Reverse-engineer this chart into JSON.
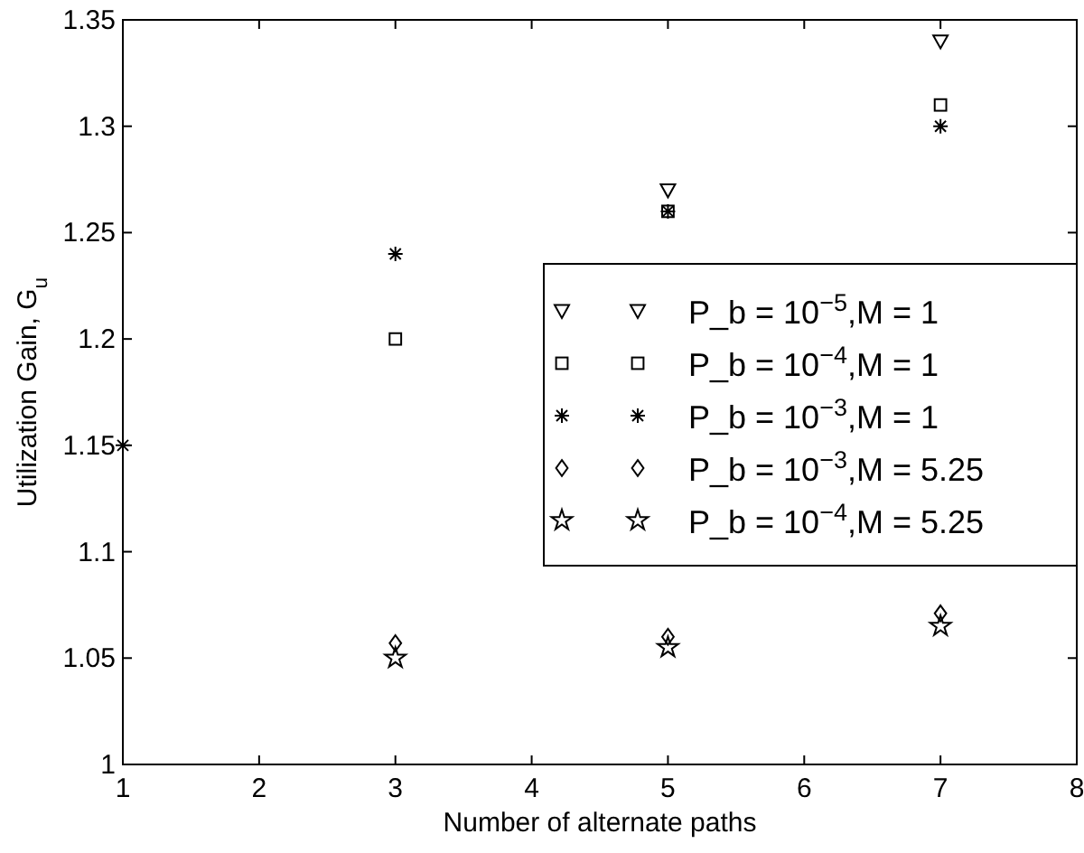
{
  "chart_data": {
    "type": "scatter",
    "xlabel": "Number of alternate paths",
    "ylabel": "Utilization Gain, G$_{u}$",
    "xlim": [
      1,
      8
    ],
    "xticks": [
      1,
      2,
      3,
      4,
      5,
      6,
      7,
      8
    ],
    "ylim": [
      1,
      1.35
    ],
    "yticks": [
      1,
      1.05,
      1.1,
      1.15,
      1.2,
      1.25,
      1.3,
      1.35
    ],
    "grid": false,
    "legend": "right",
    "series": [
      {
        "name": "P_b = 10$^{−5}$,M = 1",
        "color": "#000000",
        "marker": "triangle",
        "x": [
          5,
          7
        ],
        "values": [
          1.27,
          1.34
        ]
      },
      {
        "name": "P_b = 10$^{−4}$,M = 1",
        "color": "#000000",
        "marker": "square",
        "x": [
          3,
          5,
          7
        ],
        "values": [
          1.2,
          1.26,
          1.31
        ]
      },
      {
        "name": "P_b = 10$^{−3}$,M = 1",
        "color": "#000000",
        "marker": "cross",
        "x": [
          1,
          3,
          5,
          7
        ],
        "values": [
          1.15,
          1.24,
          1.26,
          1.3
        ]
      },
      {
        "name": "P_b = 10$^{−3}$,M = 5.25",
        "color": "#000000",
        "marker": "diamond",
        "x": [
          3,
          5,
          7
        ],
        "values": [
          1.057,
          1.06,
          1.071
        ]
      },
      {
        "name": "P_b = 10$^{−4}$,M = 5.25",
        "color": "#000000",
        "marker": "star",
        "x": [
          3,
          5,
          7
        ],
        "values": [
          1.05,
          1.055,
          1.065
        ]
      }
    ]
  }
}
